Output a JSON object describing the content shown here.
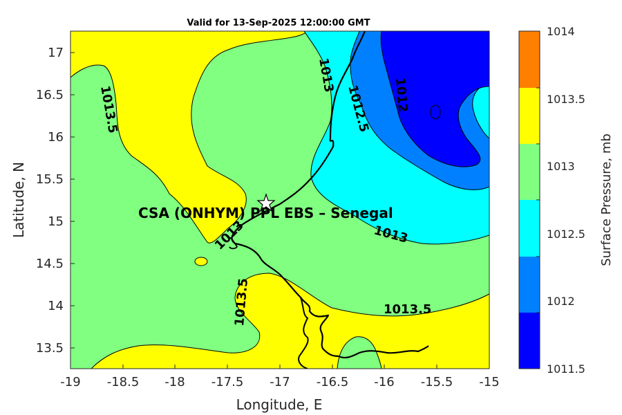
{
  "title": "Valid for 13-Sep-2025 12:00:00 GMT",
  "x_axis": {
    "label": "Longitude, E",
    "ticks": [
      "-19",
      "-18.5",
      "-18",
      "-17.5",
      "-17",
      "-16.5",
      "-16",
      "-15.5",
      "-15"
    ]
  },
  "y_axis": {
    "label": "Latitude, N",
    "ticks": [
      "17",
      "16.5",
      "16",
      "15.5",
      "15",
      "14.5",
      "14",
      "13.5"
    ]
  },
  "site": {
    "label": "CSA (ONHYM) PPL EBS  – Senegal",
    "marker": "star-icon"
  },
  "contour_labels": [
    "1013.5",
    "1013",
    "1012.5",
    "1012",
    "1013.5",
    "1013",
    "1013.5",
    "1013.5",
    "1013"
  ],
  "colorbar": {
    "title": "Surface Pressure, mb",
    "tick_labels": [
      "1014",
      "1013.5",
      "1013",
      "1012.5",
      "1012",
      "1011.5"
    ],
    "colors": [
      "#ff7f00",
      "#ffff00",
      "#80ff80",
      "#00ffff",
      "#0080ff",
      "#0000ff"
    ]
  },
  "chart_data": {
    "type": "heatmap",
    "title": "Valid for 13-Sep-2025 12:00:00 GMT",
    "xlabel": "Longitude, E",
    "ylabel": "Latitude, N",
    "xlim": [
      -19,
      -15
    ],
    "ylim": [
      13.25,
      17.25
    ],
    "colorbar_label": "Surface Pressure, mb",
    "levels": [
      1011.5,
      1012,
      1012.5,
      1013,
      1013.5,
      1014
    ],
    "site_location": {
      "lon": -17.1,
      "lat": 15.23
    }
  }
}
